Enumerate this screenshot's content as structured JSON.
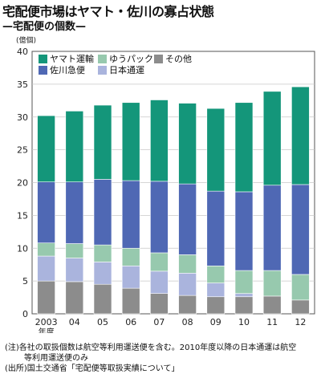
{
  "header": {
    "title": "宅配便市場はヤマト・佐川の寡占状態",
    "subtitle": "—宅配便の個数—"
  },
  "chart_data": {
    "type": "bar",
    "stacked": true,
    "unit_label": "(億個)",
    "categories": [
      "2003",
      "04",
      "05",
      "06",
      "07",
      "08",
      "09",
      "10",
      "11",
      "12"
    ],
    "category_sub_label": "年度",
    "ylim": [
      0,
      40
    ],
    "yticks": [
      0,
      5,
      10,
      15,
      20,
      25,
      30,
      35,
      40
    ],
    "grid": true,
    "legend": "top-left",
    "series": [
      {
        "name": "その他",
        "color": "#8c8c8c",
        "values": [
          5.0,
          4.9,
          4.5,
          3.9,
          3.1,
          2.8,
          2.6,
          2.6,
          2.7,
          2.1
        ]
      },
      {
        "name": "日本通運",
        "color": "#aab4dd",
        "values": [
          3.8,
          3.6,
          3.4,
          3.4,
          3.4,
          3.4,
          2.1,
          0.5,
          0.0,
          0.0
        ]
      },
      {
        "name": "ゆうパック",
        "color": "#97c9ae",
        "values": [
          2.0,
          2.2,
          2.6,
          2.7,
          2.8,
          2.8,
          2.6,
          3.5,
          3.9,
          3.9
        ]
      },
      {
        "name": "佐川急便",
        "color": "#4f68b4",
        "values": [
          9.3,
          9.4,
          10.0,
          10.3,
          10.9,
          10.8,
          11.4,
          12.0,
          13.0,
          13.7
        ]
      },
      {
        "name": "ヤマト運輸",
        "color": "#14967a",
        "values": [
          10.1,
          10.8,
          11.3,
          11.9,
          12.4,
          12.3,
          12.6,
          13.6,
          14.3,
          14.9
        ]
      }
    ],
    "legend_order": [
      "ヤマト運輸",
      "ゆうパック",
      "その他",
      "佐川急便",
      "日本通運"
    ]
  },
  "notes": {
    "note1": "(注)各社の取扱個数は航空等利用運送便を含む。2010年度以降の日本通運は航空",
    "note2": "等利用運送便のみ",
    "source": "(出所)国土交通省「宅配便等取扱実績について」"
  }
}
